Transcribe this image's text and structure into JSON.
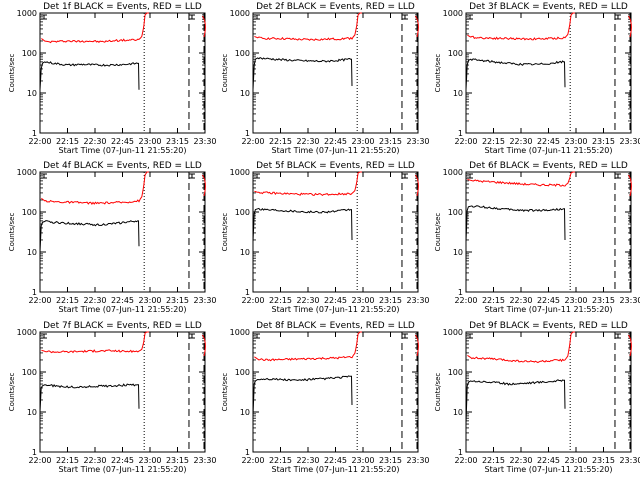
{
  "chart_data": [
    {
      "type": "line",
      "title": "Det 1f BLACK = Events, RED = LLD",
      "xlabel": "Start Time (07-Jun-11 21:55:20)",
      "ylabel": "Counts/sec",
      "xticks": [
        "22:00",
        "22:15",
        "22:30",
        "22:45",
        "23:00",
        "23:15",
        "23:30"
      ],
      "yticks": [
        "1",
        "10",
        "100",
        "1000"
      ],
      "yscale": "log",
      "ylim": [
        1,
        1000
      ],
      "xlim_minutes": [
        0,
        35
      ],
      "vlines": {
        "dotted": 22.1,
        "dashed": [
          31.6,
          35.3
        ]
      },
      "series": [
        {
          "name": "LLD",
          "color": "#ff0000",
          "x": [
            0.3,
            1.0,
            2.0,
            4.0,
            6.0,
            8.0,
            10.0,
            13.0,
            16.0,
            19.0,
            21.0,
            21.6,
            22.0,
            22.3,
            22.7,
            23.1
          ],
          "y": [
            230,
            200,
            190,
            195,
            200,
            195,
            200,
            190,
            205,
            210,
            215,
            260,
            450,
            900,
            1000,
            1000
          ]
        },
        {
          "name": "Events",
          "color": "#000000",
          "x": [
            0.0,
            0.25,
            0.5,
            1.0,
            3.0,
            6.0,
            9.0,
            12.0,
            15.0,
            18.0,
            20.5,
            20.9,
            21.0
          ],
          "y": [
            12,
            40,
            55,
            60,
            55,
            50,
            52,
            50,
            50,
            52,
            55,
            55,
            12
          ]
        }
      ]
    },
    {
      "type": "line",
      "title": "Det 2f BLACK = Events, RED = LLD",
      "xlabel": "Start Time (07-Jun-11 21:55:20)",
      "ylabel": "Counts/sec",
      "xticks": [
        "22:00",
        "22:15",
        "22:30",
        "22:45",
        "23:00",
        "23:15",
        "23:30"
      ],
      "yticks": [
        "1",
        "10",
        "100",
        "1000"
      ],
      "yscale": "log",
      "ylim": [
        1,
        1000
      ],
      "xlim_minutes": [
        0,
        35
      ],
      "vlines": {
        "dotted": 22.1,
        "dashed": [
          31.6,
          35.3
        ]
      },
      "series": [
        {
          "name": "LLD",
          "color": "#ff0000",
          "x": [
            0.3,
            1.0,
            3.0,
            6.0,
            9.0,
            12.0,
            15.0,
            18.0,
            21.0,
            21.6,
            22.0,
            22.3,
            22.7,
            23.1
          ],
          "y": [
            260,
            240,
            230,
            230,
            220,
            215,
            220,
            225,
            235,
            280,
            480,
            900,
            1000,
            1000
          ]
        },
        {
          "name": "Events",
          "color": "#000000",
          "x": [
            0.0,
            0.25,
            0.5,
            1.0,
            3.0,
            6.0,
            9.0,
            12.0,
            15.0,
            18.0,
            20.5,
            20.9,
            21.0
          ],
          "y": [
            12,
            50,
            70,
            75,
            72,
            68,
            65,
            63,
            62,
            65,
            70,
            70,
            15
          ]
        }
      ]
    },
    {
      "type": "line",
      "title": "Det 3f BLACK = Events, RED = LLD",
      "xlabel": "Start Time (07-Jun-11 21:55:20)",
      "ylabel": "Counts/sec",
      "xticks": [
        "22:00",
        "22:15",
        "22:30",
        "22:45",
        "23:00",
        "23:15",
        "23:30"
      ],
      "yticks": [
        "1",
        "10",
        "100",
        "1000"
      ],
      "yscale": "log",
      "ylim": [
        1,
        1000
      ],
      "xlim_minutes": [
        0,
        35
      ],
      "vlines": {
        "dotted": 22.1,
        "dashed": [
          31.6,
          35.3
        ]
      },
      "series": [
        {
          "name": "LLD",
          "color": "#ff0000",
          "x": [
            0.3,
            1.0,
            3.0,
            6.0,
            9.0,
            12.0,
            15.0,
            18.0,
            21.0,
            21.6,
            22.0,
            22.3,
            22.7,
            23.1
          ],
          "y": [
            280,
            250,
            240,
            235,
            230,
            225,
            225,
            230,
            240,
            290,
            500,
            900,
            1000,
            1000
          ]
        },
        {
          "name": "Events",
          "color": "#000000",
          "x": [
            0.0,
            0.25,
            0.5,
            1.0,
            3.0,
            6.0,
            9.0,
            12.0,
            15.0,
            18.0,
            20.5,
            20.9,
            21.0
          ],
          "y": [
            12,
            50,
            65,
            70,
            65,
            60,
            55,
            52,
            52,
            55,
            60,
            60,
            14
          ]
        }
      ]
    },
    {
      "type": "line",
      "title": "Det 4f BLACK = Events, RED = LLD",
      "xlabel": "Start Time (07-Jun-11 21:55:20)",
      "ylabel": "Counts/sec",
      "xticks": [
        "22:00",
        "22:15",
        "22:30",
        "22:45",
        "23:00",
        "23:15",
        "23:30"
      ],
      "yticks": [
        "1",
        "10",
        "100",
        "1000"
      ],
      "yscale": "log",
      "ylim": [
        1,
        1000
      ],
      "xlim_minutes": [
        0,
        35
      ],
      "vlines": {
        "dotted": 22.1,
        "dashed": [
          31.6,
          35.3
        ]
      },
      "series": [
        {
          "name": "LLD",
          "color": "#ff0000",
          "x": [
            0.3,
            1.0,
            3.0,
            6.0,
            9.0,
            12.0,
            15.0,
            18.0,
            21.0,
            21.6,
            22.0,
            22.3,
            22.7,
            23.1
          ],
          "y": [
            220,
            190,
            180,
            175,
            170,
            165,
            170,
            175,
            190,
            240,
            450,
            850,
            1000,
            1000
          ]
        },
        {
          "name": "Events",
          "color": "#000000",
          "x": [
            0.0,
            0.25,
            0.5,
            1.0,
            3.0,
            6.0,
            9.0,
            12.0,
            15.0,
            18.0,
            20.5,
            20.9,
            21.0
          ],
          "y": [
            10,
            45,
            55,
            58,
            55,
            52,
            50,
            48,
            50,
            55,
            60,
            60,
            14
          ]
        }
      ]
    },
    {
      "type": "line",
      "title": "Det 5f BLACK = Events, RED = LLD",
      "xlabel": "Start Time (07-Jun-11 21:55:20)",
      "ylabel": "Counts/sec",
      "xticks": [
        "22:00",
        "22:15",
        "22:30",
        "22:45",
        "23:00",
        "23:15",
        "23:30"
      ],
      "yticks": [
        "1",
        "10",
        "100",
        "1000"
      ],
      "yscale": "log",
      "ylim": [
        1,
        1000
      ],
      "xlim_minutes": [
        0,
        35
      ],
      "vlines": {
        "dotted": 22.1,
        "dashed": [
          31.6,
          35.3
        ]
      },
      "series": [
        {
          "name": "LLD",
          "color": "#ff0000",
          "x": [
            0.3,
            1.0,
            3.0,
            6.0,
            9.0,
            12.0,
            15.0,
            18.0,
            21.0,
            21.6,
            22.0,
            22.3,
            22.7,
            23.1
          ],
          "y": [
            330,
            310,
            300,
            290,
            280,
            275,
            275,
            280,
            290,
            340,
            550,
            950,
            1000,
            1000
          ]
        },
        {
          "name": "Events",
          "color": "#000000",
          "x": [
            0.0,
            0.25,
            0.5,
            1.0,
            3.0,
            6.0,
            9.0,
            12.0,
            15.0,
            18.0,
            20.5,
            20.9,
            21.0
          ],
          "y": [
            18,
            90,
            115,
            120,
            115,
            110,
            105,
            100,
            100,
            105,
            115,
            115,
            20
          ]
        }
      ]
    },
    {
      "type": "line",
      "title": "Det 6f BLACK = Events, RED = LLD",
      "xlabel": "Start Time (07-Jun-11 21:55:20)",
      "ylabel": "Counts/sec",
      "xticks": [
        "22:00",
        "22:15",
        "22:30",
        "22:45",
        "23:00",
        "23:15",
        "23:30"
      ],
      "yticks": [
        "1",
        "10",
        "100",
        "1000"
      ],
      "yscale": "log",
      "ylim": [
        1,
        1000
      ],
      "xlim_minutes": [
        0,
        35
      ],
      "vlines": {
        "dotted": 22.1,
        "dashed": [
          31.6,
          35.3
        ]
      },
      "series": [
        {
          "name": "LLD",
          "color": "#ff0000",
          "x": [
            0.3,
            1.0,
            3.0,
            6.0,
            9.0,
            12.0,
            15.0,
            18.0,
            21.0,
            21.6,
            22.0,
            22.3,
            22.7,
            23.1
          ],
          "y": [
            650,
            620,
            590,
            560,
            530,
            500,
            480,
            470,
            470,
            520,
            700,
            950,
            1000,
            1000
          ]
        },
        {
          "name": "Events",
          "color": "#000000",
          "x": [
            0.0,
            0.25,
            0.5,
            1.0,
            3.0,
            6.0,
            9.0,
            12.0,
            15.0,
            18.0,
            20.5,
            20.9,
            21.0
          ],
          "y": [
            18,
            110,
            135,
            140,
            135,
            125,
            115,
            110,
            110,
            112,
            120,
            120,
            20
          ]
        }
      ]
    },
    {
      "type": "line",
      "title": "Det 7f BLACK = Events, RED = LLD",
      "xlabel": "Start Time (07-Jun-11 21:55:20)",
      "ylabel": "Counts/sec",
      "xticks": [
        "22:00",
        "22:15",
        "22:30",
        "22:45",
        "23:00",
        "23:15",
        "23:30"
      ],
      "yticks": [
        "1",
        "10",
        "100",
        "1000"
      ],
      "yscale": "log",
      "ylim": [
        1,
        1000
      ],
      "xlim_minutes": [
        0,
        35
      ],
      "vlines": {
        "dotted": 22.1,
        "dashed": [
          31.6,
          35.3
        ]
      },
      "series": [
        {
          "name": "LLD",
          "color": "#ff0000",
          "x": [
            0.3,
            1.0,
            3.0,
            6.0,
            9.0,
            12.0,
            15.0,
            18.0,
            21.0,
            21.6,
            22.0,
            22.3,
            22.7,
            23.1
          ],
          "y": [
            350,
            330,
            320,
            320,
            330,
            335,
            340,
            330,
            330,
            370,
            560,
            950,
            1000,
            1000
          ]
        },
        {
          "name": "Events",
          "color": "#000000",
          "x": [
            0.0,
            0.25,
            0.5,
            1.0,
            3.0,
            6.0,
            9.0,
            12.0,
            15.0,
            18.0,
            20.5,
            20.9,
            21.0
          ],
          "y": [
            10,
            40,
            45,
            48,
            45,
            42,
            42,
            44,
            45,
            47,
            48,
            48,
            12
          ]
        }
      ]
    },
    {
      "type": "line",
      "title": "Det 8f BLACK = Events, RED = LLD",
      "xlabel": "Start Time (07-Jun-11 21:55:20)",
      "ylabel": "Counts/sec",
      "xticks": [
        "22:00",
        "22:15",
        "22:30",
        "22:45",
        "23:00",
        "23:15",
        "23:30"
      ],
      "yticks": [
        "1",
        "10",
        "100",
        "1000"
      ],
      "yscale": "log",
      "ylim": [
        1,
        1000
      ],
      "xlim_minutes": [
        0,
        35
      ],
      "vlines": {
        "dotted": 22.1,
        "dashed": [
          31.6,
          35.3
        ]
      },
      "series": [
        {
          "name": "LLD",
          "color": "#ff0000",
          "x": [
            0.3,
            1.0,
            3.0,
            6.0,
            9.0,
            12.0,
            15.0,
            18.0,
            21.0,
            21.6,
            22.0,
            22.3,
            22.7,
            23.1
          ],
          "y": [
            240,
            210,
            200,
            205,
            210,
            215,
            220,
            225,
            240,
            290,
            500,
            900,
            1000,
            1000
          ]
        },
        {
          "name": "Events",
          "color": "#000000",
          "x": [
            0.0,
            0.25,
            0.5,
            1.0,
            3.0,
            6.0,
            9.0,
            12.0,
            15.0,
            18.0,
            20.5,
            20.9,
            21.0
          ],
          "y": [
            8,
            50,
            60,
            65,
            68,
            65,
            62,
            65,
            68,
            72,
            78,
            78,
            15
          ]
        }
      ]
    },
    {
      "type": "line",
      "title": "Det 9f BLACK = Events, RED = LLD",
      "xlabel": "Start Time (07-Jun-11 21:55:20)",
      "ylabel": "Counts/sec",
      "xticks": [
        "22:00",
        "22:15",
        "22:30",
        "22:45",
        "23:00",
        "23:15",
        "23:30"
      ],
      "yticks": [
        "1",
        "10",
        "100",
        "1000"
      ],
      "yscale": "log",
      "ylim": [
        1,
        1000
      ],
      "xlim_minutes": [
        0,
        35
      ],
      "vlines": {
        "dotted": 22.1,
        "dashed": [
          31.6,
          35.3
        ]
      },
      "series": [
        {
          "name": "LLD",
          "color": "#ff0000",
          "x": [
            0.3,
            1.0,
            3.0,
            6.0,
            9.0,
            12.0,
            15.0,
            18.0,
            21.0,
            21.6,
            22.0,
            22.3,
            22.7,
            23.1
          ],
          "y": [
            260,
            230,
            220,
            210,
            195,
            185,
            180,
            190,
            200,
            250,
            480,
            900,
            1000,
            1000
          ]
        },
        {
          "name": "Events",
          "color": "#000000",
          "x": [
            0.0,
            0.25,
            0.5,
            1.0,
            3.0,
            6.0,
            9.0,
            12.0,
            15.0,
            18.0,
            20.5,
            20.9,
            21.0
          ],
          "y": [
            5,
            45,
            55,
            60,
            58,
            55,
            50,
            52,
            55,
            58,
            62,
            62,
            12
          ]
        }
      ]
    }
  ]
}
